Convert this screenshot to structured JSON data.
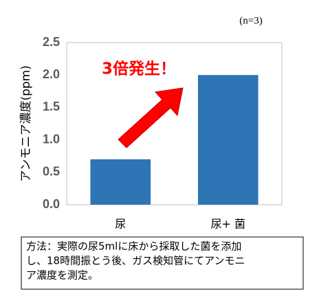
{
  "chart_data": {
    "type": "bar",
    "y_label": "アンモニア濃度(ppm)",
    "note": "(n=3)",
    "annotation": "3倍発生！",
    "categories": [
      "尿",
      "尿+ 菌"
    ],
    "values": [
      0.7,
      2.0
    ],
    "color": "#2e75b6",
    "ylim": [
      0,
      2.5
    ],
    "yticks": [
      {
        "value": 0,
        "label": "0.0"
      },
      0.5,
      {
        "value": 1,
        "label": "1.0"
      },
      1.5,
      {
        "value": 2,
        "label": "2.0"
      },
      2.5
    ]
  },
  "method_note": [
    "方法：実際の尿5mlに床から採取した菌を添加",
    "し、18時間振とう後、ガス検知管にてアンモニ",
    "ア濃度を測定。"
  ]
}
